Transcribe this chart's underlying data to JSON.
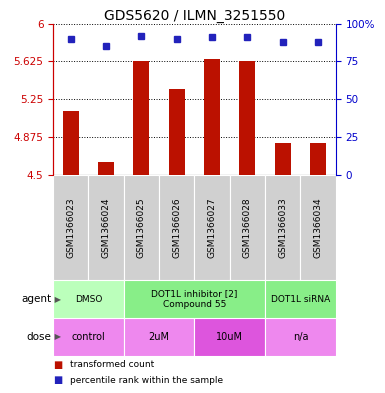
{
  "title": "GDS5620 / ILMN_3251550",
  "samples": [
    "GSM1366023",
    "GSM1366024",
    "GSM1366025",
    "GSM1366026",
    "GSM1366027",
    "GSM1366028",
    "GSM1366033",
    "GSM1366034"
  ],
  "red_values": [
    5.13,
    4.63,
    5.63,
    5.35,
    5.65,
    5.63,
    4.82,
    4.82
  ],
  "blue_values": [
    5.85,
    5.78,
    5.88,
    5.85,
    5.87,
    5.87,
    5.82,
    5.82
  ],
  "ylim": [
    4.5,
    6.0
  ],
  "yticks_left": [
    4.5,
    4.875,
    5.25,
    5.625,
    6.0
  ],
  "yticks_right": [
    0,
    25,
    50,
    75,
    100
  ],
  "ytick_labels_left": [
    "4.5",
    "4.875",
    "5.25",
    "5.625",
    "6"
  ],
  "ytick_labels_right": [
    "0",
    "25",
    "50",
    "75",
    "100%"
  ],
  "agent_groups": [
    {
      "label": "DMSO",
      "cols": [
        0,
        1
      ],
      "color": "#bbffbb"
    },
    {
      "label": "DOT1L inhibitor [2]\nCompound 55",
      "cols": [
        2,
        3,
        4,
        5
      ],
      "color": "#88ee88"
    },
    {
      "label": "DOT1L siRNA",
      "cols": [
        6,
        7
      ],
      "color": "#88ee88"
    }
  ],
  "dose_groups": [
    {
      "label": "control",
      "cols": [
        0,
        1
      ],
      "color": "#ee88ee"
    },
    {
      "label": "2uM",
      "cols": [
        2,
        3
      ],
      "color": "#ee88ee"
    },
    {
      "label": "10uM",
      "cols": [
        4,
        5
      ],
      "color": "#dd55dd"
    },
    {
      "label": "n/a",
      "cols": [
        6,
        7
      ],
      "color": "#ee88ee"
    }
  ],
  "bar_color": "#bb1100",
  "dot_color": "#2222bb",
  "left_tick_color": "#cc0000",
  "right_tick_color": "#0000cc",
  "label_agent": "agent",
  "label_dose": "dose",
  "legend_red": "transformed count",
  "legend_blue": "percentile rank within the sample"
}
